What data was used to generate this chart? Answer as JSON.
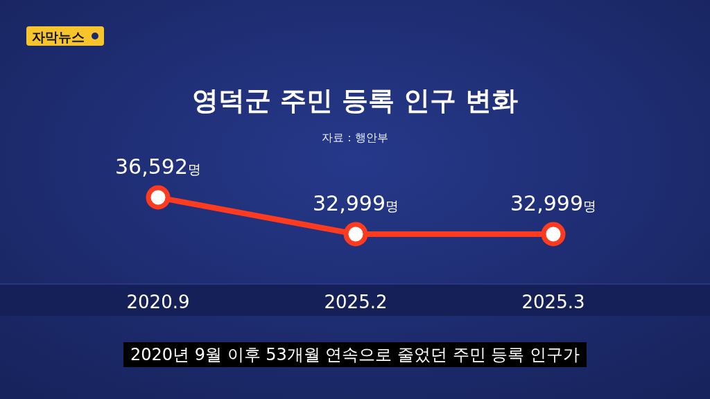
{
  "chart_data": {
    "type": "line",
    "title": "영덕군 주민 등록 인구 변화",
    "subtitle": "자료 : 행안부",
    "categories": [
      "2020.9",
      "2025.2",
      "2025.3"
    ],
    "values": [
      36592,
      32999,
      32999
    ],
    "value_labels": [
      "36,592명",
      "32,999명",
      "32,999명"
    ],
    "color": "#ff3b1f",
    "marker": "circle",
    "annotations": [
      "자막뉴스",
      "2020년 9월 이후 53개월 연속으로 줄었던 주민 등록 인구가"
    ]
  }
}
